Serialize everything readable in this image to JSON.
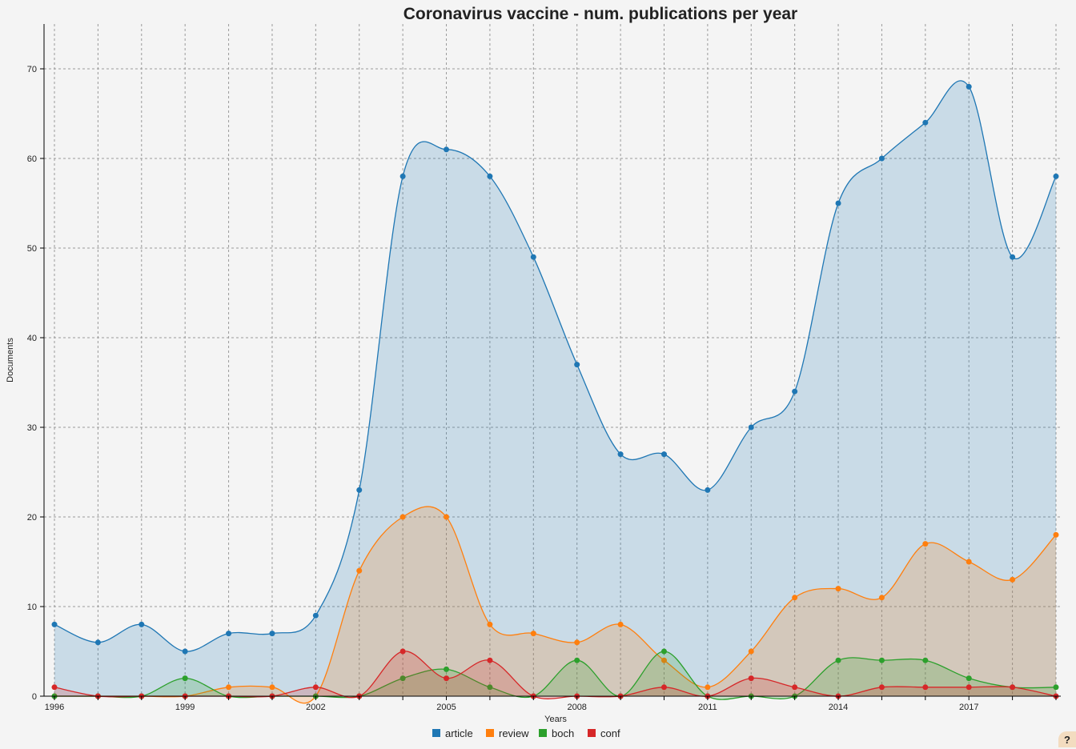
{
  "chart_data": {
    "type": "area",
    "title": "Coronavirus vaccine - num. publications per year",
    "xlabel": "Years",
    "ylabel": "Documents",
    "x": [
      1996,
      1997,
      1998,
      1999,
      2000,
      2001,
      2002,
      2003,
      2004,
      2005,
      2006,
      2007,
      2008,
      2009,
      2010,
      2011,
      2012,
      2013,
      2014,
      2015,
      2016,
      2017,
      2018,
      2019
    ],
    "x_tick_labels": [
      "1996",
      "1999",
      "2002",
      "2005",
      "2008",
      "2011",
      "2014",
      "2017"
    ],
    "y_tick_labels": [
      "0",
      "10",
      "20",
      "30",
      "40",
      "50",
      "60",
      "70"
    ],
    "ylim": [
      0,
      75
    ],
    "grid": true,
    "legend_position": "bottom",
    "series": [
      {
        "name": "article",
        "color": "#1f77b4",
        "values": [
          8,
          6,
          8,
          5,
          7,
          7,
          9,
          23,
          58,
          61,
          58,
          49,
          37,
          27,
          27,
          23,
          30,
          34,
          55,
          60,
          64,
          68,
          49,
          58
        ]
      },
      {
        "name": "review",
        "color": "#ff7f0e",
        "values": [
          0,
          0,
          0,
          0,
          1,
          1,
          0,
          14,
          20,
          20,
          8,
          7,
          6,
          8,
          4,
          1,
          5,
          11,
          12,
          11,
          17,
          15,
          13,
          18
        ]
      },
      {
        "name": "boch",
        "color": "#2ca02c",
        "values": [
          0,
          0,
          0,
          2,
          0,
          0,
          0,
          0,
          2,
          3,
          1,
          0,
          4,
          0,
          5,
          0,
          0,
          0,
          4,
          4,
          4,
          2,
          1,
          1
        ]
      },
      {
        "name": "conf",
        "color": "#d62728",
        "values": [
          1,
          0,
          0,
          0,
          0,
          0,
          1,
          0,
          5,
          2,
          4,
          0,
          0,
          0,
          1,
          0,
          2,
          1,
          0,
          1,
          1,
          1,
          1,
          0
        ]
      }
    ]
  },
  "help_button": {
    "label": "?"
  }
}
